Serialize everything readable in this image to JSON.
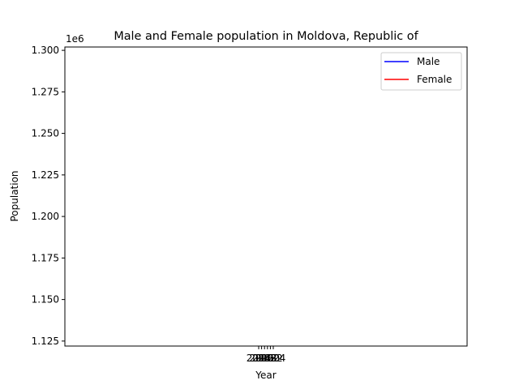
{
  "chart_data": {
    "type": "line",
    "title": "Male and Female population in Moldova, Republic of",
    "xlabel": "Year",
    "ylabel": "Population",
    "y_offset_label": "1e6",
    "ylim": [
      1122000,
      1302000
    ],
    "yticks": [
      1125000,
      1150000,
      1175000,
      1200000,
      1225000,
      1250000,
      1275000,
      1300000
    ],
    "ytick_labels": [
      "1.125",
      "1.150",
      "1.175",
      "1.200",
      "1.225",
      "1.250",
      "1.275",
      "1.300"
    ],
    "xticks": [
      "2014",
      "2016",
      "2018",
      "2020",
      "2022",
      "2024"
    ],
    "legend_position": "upper right",
    "grid": false,
    "series": [
      {
        "name": "Male",
        "color": "#0000ff",
        "values": []
      },
      {
        "name": "Female",
        "color": "#ff0000",
        "values": []
      }
    ]
  }
}
